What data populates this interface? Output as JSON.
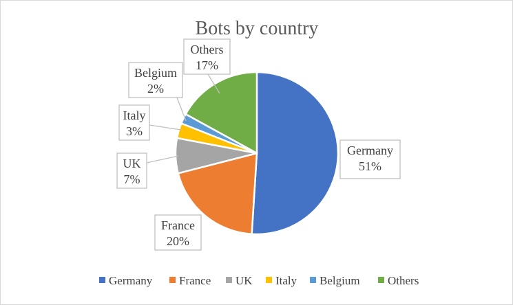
{
  "chart_data": {
    "type": "pie",
    "title": "Bots by country",
    "categories": [
      "Germany",
      "France",
      "UK",
      "Italy",
      "Belgium",
      "Others"
    ],
    "values": [
      51,
      20,
      7,
      3,
      2,
      17
    ],
    "value_labels": [
      "51%",
      "20%",
      "7%",
      "3%",
      "2%",
      "17%"
    ],
    "colors": [
      "#4472c4",
      "#ed7d31",
      "#a5a5a5",
      "#ffc000",
      "#5b9bd5",
      "#70ad47"
    ],
    "start_angle_deg": 0,
    "direction": "clockwise",
    "legend_position": "bottom",
    "labels": "callouts"
  }
}
